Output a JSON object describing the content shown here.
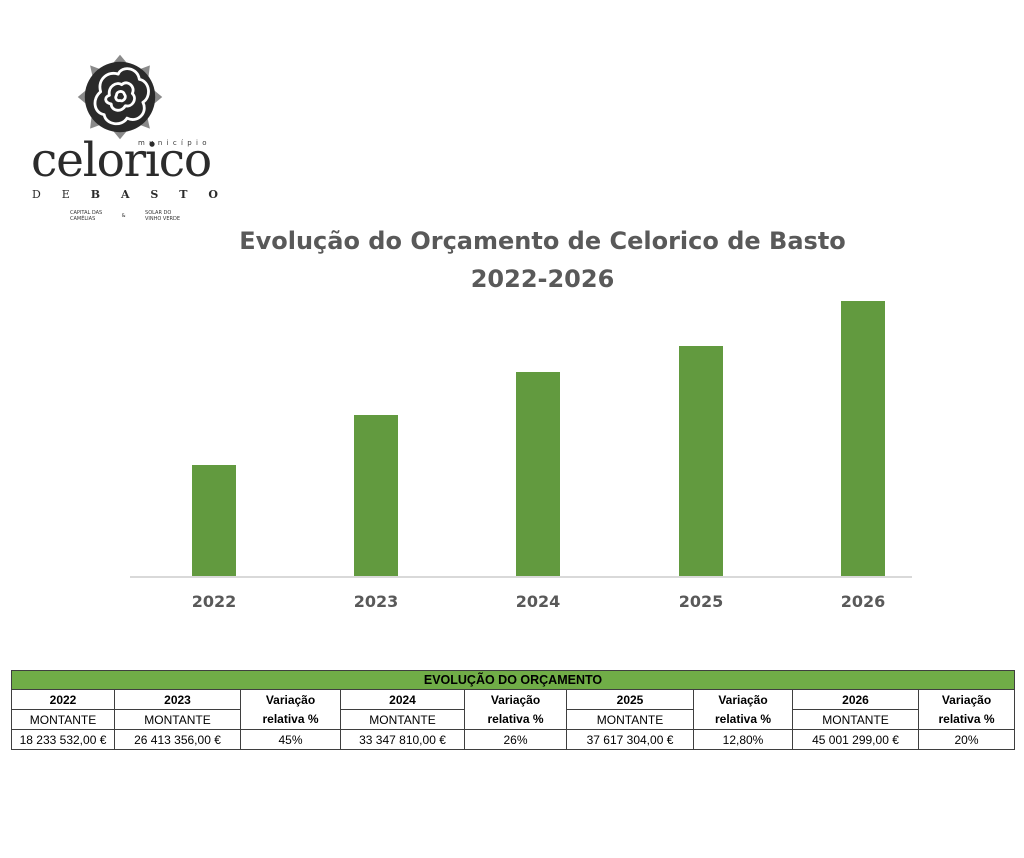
{
  "logo": {
    "municipio": "município",
    "name": "celorico",
    "subtitle_light": "DE",
    "subtitle_bold": [
      "B",
      "A",
      "S",
      "T",
      "O"
    ],
    "tagline_left": [
      "CAPITAL DAS",
      "CAMÉLIAS"
    ],
    "tagline_amp": "&",
    "tagline_right": [
      "SOLAR DO",
      "VINHO VERDE"
    ]
  },
  "chart": {
    "title_line1": "Evolução do Orçamento de Celorico de Basto",
    "title_line2": "2022-2026",
    "bar_color": "#629a3f"
  },
  "chart_data": {
    "type": "bar",
    "title": "Evolução do Orçamento de Celorico de Basto 2022-2026",
    "categories": [
      "2022",
      "2023",
      "2024",
      "2025",
      "2026"
    ],
    "values": [
      18233532.0,
      26413356.0,
      33347810.0,
      37617304.0,
      45001299.0
    ],
    "xlabel": "",
    "ylabel": "",
    "ylim": [
      0,
      45001299
    ],
    "grid": false,
    "legend": "none",
    "y_axis_visible": false
  },
  "table": {
    "title": "EVOLUÇÃO DO ORÇAMENTO",
    "header_color": "#70ad47",
    "variation_label_line1": "Variação",
    "variation_label_line2": "relativa %",
    "amount_label": "MONTANTE",
    "columns": [
      {
        "type": "amount",
        "year": "2022",
        "value": "18 233 532,00 €"
      },
      {
        "type": "amount",
        "year": "2023",
        "value": "26 413 356,00 €"
      },
      {
        "type": "variation",
        "value": "45%"
      },
      {
        "type": "amount",
        "year": "2024",
        "value": "33 347 810,00 €"
      },
      {
        "type": "variation",
        "value": "26%"
      },
      {
        "type": "amount",
        "year": "2025",
        "value": "37 617 304,00 €"
      },
      {
        "type": "variation",
        "value": "12,80%"
      },
      {
        "type": "amount",
        "year": "2026",
        "value": "45 001 299,00 €"
      },
      {
        "type": "variation",
        "value": "20%"
      }
    ]
  }
}
